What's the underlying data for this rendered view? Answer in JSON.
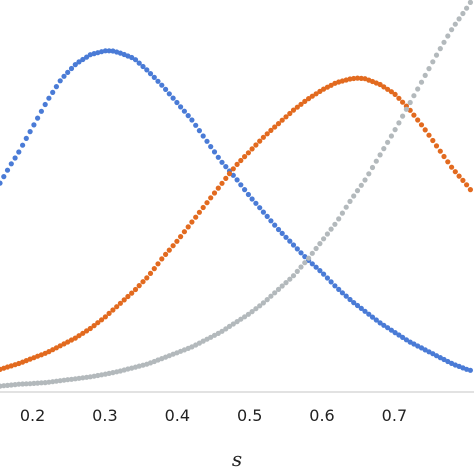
{
  "chart_data": {
    "type": "scatter",
    "xlabel": "s",
    "ylabel": "",
    "title": "",
    "xlim": [
      0.155,
      0.81
    ],
    "ylim": [
      0,
      1.02
    ],
    "xticks": [
      "0.2",
      "0.3",
      "0.4",
      "0.5",
      "0.6",
      "0.7"
    ],
    "grid": false,
    "legend": "none",
    "series": [
      {
        "color": "#4a7bd6",
        "x": [
          0.155,
          0.17,
          0.18,
          0.19,
          0.2,
          0.22,
          0.24,
          0.26,
          0.28,
          0.3,
          0.31,
          0.32,
          0.34,
          0.36,
          0.38,
          0.4,
          0.42,
          0.44,
          0.46,
          0.48,
          0.5,
          0.52,
          0.54,
          0.56,
          0.58,
          0.6,
          0.62,
          0.64,
          0.66,
          0.68,
          0.7,
          0.72,
          0.74,
          0.76,
          0.78,
          0.8,
          0.81
        ],
        "y": [
          0.55,
          0.6,
          0.63,
          0.665,
          0.7,
          0.77,
          0.83,
          0.87,
          0.895,
          0.905,
          0.905,
          0.9,
          0.885,
          0.85,
          0.81,
          0.765,
          0.72,
          0.665,
          0.61,
          0.565,
          0.515,
          0.47,
          0.425,
          0.385,
          0.345,
          0.31,
          0.27,
          0.235,
          0.205,
          0.175,
          0.15,
          0.125,
          0.105,
          0.085,
          0.065,
          0.05,
          0.045
        ]
      },
      {
        "color": "#e26a1f",
        "x": [
          0.155,
          0.18,
          0.2,
          0.22,
          0.24,
          0.26,
          0.28,
          0.3,
          0.32,
          0.34,
          0.36,
          0.38,
          0.4,
          0.42,
          0.44,
          0.46,
          0.48,
          0.5,
          0.52,
          0.54,
          0.56,
          0.58,
          0.6,
          0.62,
          0.64,
          0.65,
          0.66,
          0.68,
          0.7,
          0.72,
          0.74,
          0.76,
          0.78,
          0.8,
          0.81
        ],
        "y": [
          0.05,
          0.065,
          0.08,
          0.095,
          0.115,
          0.135,
          0.16,
          0.19,
          0.225,
          0.26,
          0.3,
          0.35,
          0.395,
          0.445,
          0.495,
          0.545,
          0.595,
          0.635,
          0.675,
          0.71,
          0.745,
          0.775,
          0.8,
          0.82,
          0.83,
          0.832,
          0.83,
          0.815,
          0.79,
          0.75,
          0.7,
          0.645,
          0.59,
          0.545,
          0.52
        ]
      },
      {
        "color": "#b3b9bc",
        "x": [
          0.155,
          0.18,
          0.2,
          0.22,
          0.24,
          0.26,
          0.28,
          0.3,
          0.32,
          0.34,
          0.36,
          0.38,
          0.4,
          0.42,
          0.44,
          0.46,
          0.48,
          0.5,
          0.52,
          0.54,
          0.56,
          0.58,
          0.6,
          0.62,
          0.64,
          0.66,
          0.68,
          0.7,
          0.72,
          0.74,
          0.76,
          0.78,
          0.8,
          0.81
        ],
        "y": [
          0.005,
          0.01,
          0.012,
          0.015,
          0.02,
          0.025,
          0.03,
          0.037,
          0.045,
          0.055,
          0.065,
          0.08,
          0.095,
          0.11,
          0.13,
          0.15,
          0.175,
          0.2,
          0.23,
          0.265,
          0.3,
          0.345,
          0.395,
          0.445,
          0.505,
          0.56,
          0.625,
          0.69,
          0.76,
          0.83,
          0.9,
          0.965,
          1.02,
          1.05
        ]
      }
    ]
  }
}
